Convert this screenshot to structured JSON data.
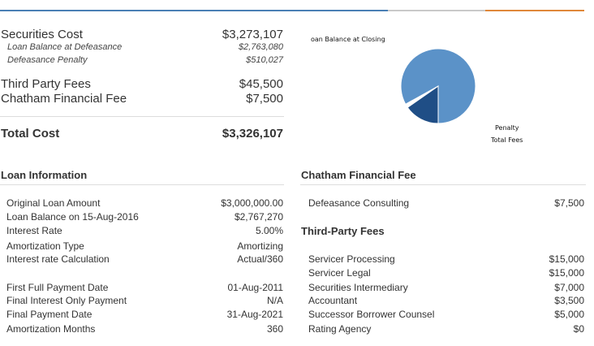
{
  "colors": {
    "top_bar_blue": "#4a7fb5",
    "top_bar_gray": "#c9c9c9",
    "top_bar_orange": "#e0883a",
    "pie_light": "#5b92c8",
    "pie_dark": "#1f4e86"
  },
  "summary": {
    "securities_cost": {
      "label": "Securities Cost",
      "value": "$3,273,107"
    },
    "loan_balance_at_defeasance": {
      "label": "Loan Balance at Defeasance",
      "value": "$2,763,080"
    },
    "defeasance_penalty": {
      "label": "Defeasance Penalty",
      "value": "$510,027"
    },
    "third_party_fees": {
      "label": "Third Party Fees",
      "value": "$45,500"
    },
    "chatham_financial_fee": {
      "label": "Chatham Financial Fee",
      "value": "$7,500"
    },
    "total_cost": {
      "label": "Total Cost",
      "value": "$3,326,107"
    }
  },
  "pie": {
    "label_top": "oan Balance at Closing",
    "label_penalty": "Penalty",
    "label_total_fees": "Total Fees",
    "slices": [
      {
        "name": "Loan Balance at Closing",
        "value": 2763080,
        "color": "#5b92c8"
      },
      {
        "name": "Penalty",
        "value": 510027,
        "color": "#1f4e86"
      },
      {
        "name": "Total Fees",
        "value": 53000,
        "color": "#ffffff"
      }
    ]
  },
  "loan_info": {
    "title": "Loan Information",
    "rows": [
      {
        "label": "Original Loan Amount",
        "value": "$3,000,000.00"
      },
      {
        "label": "Loan Balance on 15-Aug-2016",
        "value": "$2,767,270"
      },
      {
        "label": "Interest Rate",
        "value": "5.00%"
      },
      {
        "label": "Amortization Type",
        "value": "Amortizing"
      },
      {
        "label": "Interest rate Calculation",
        "value": "Actual/360"
      },
      {
        "label": "First Full Payment Date",
        "value": "01-Aug-2011"
      },
      {
        "label": "Final Interest Only Payment",
        "value": "N/A"
      },
      {
        "label": "Final Payment Date",
        "value": "31-Aug-2021"
      },
      {
        "label": "Amortization Months",
        "value": "360"
      }
    ]
  },
  "chatham_fee": {
    "title": "Chatham Financial Fee",
    "rows": [
      {
        "label": "Defeasance Consulting",
        "value": "$7,500"
      }
    ]
  },
  "third_party": {
    "title": "Third-Party Fees",
    "rows": [
      {
        "label": "Servicer Processing",
        "value": "$15,000"
      },
      {
        "label": "Servicer Legal",
        "value": "$15,000"
      },
      {
        "label": "Securities Intermediary",
        "value": "$7,000"
      },
      {
        "label": "Accountant",
        "value": "$3,500"
      },
      {
        "label": "Successor Borrower Counsel",
        "value": "$5,000"
      },
      {
        "label": "Rating Agency",
        "value": "$0"
      }
    ]
  }
}
